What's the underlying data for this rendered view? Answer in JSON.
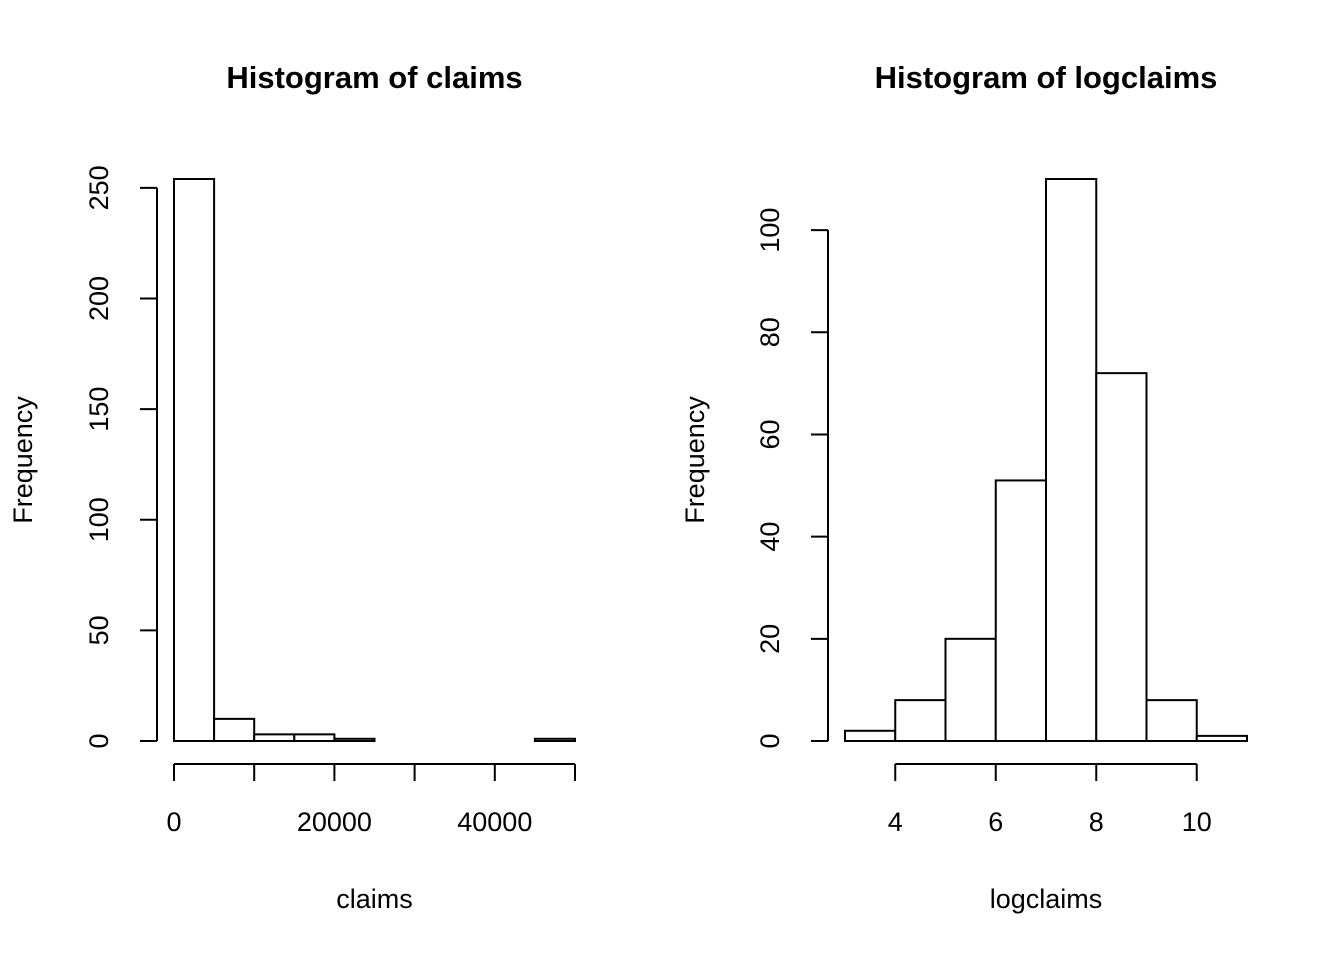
{
  "chart_data": [
    {
      "type": "histogram",
      "title": "Histogram of claims",
      "xlabel": "claims",
      "ylabel": "Frequency",
      "bins": [
        0,
        5000,
        10000,
        15000,
        20000,
        25000,
        30000,
        35000,
        40000,
        45000,
        50000
      ],
      "values": [
        254,
        10,
        3,
        3,
        1,
        0,
        0,
        0,
        0,
        1
      ],
      "xlim": [
        0,
        50000
      ],
      "ylim": [
        0,
        254
      ],
      "xticks": [
        0,
        20000,
        40000
      ],
      "xminor_ticks": [
        10000,
        30000,
        50000
      ],
      "yticks": [
        0,
        50,
        100,
        150,
        200,
        250
      ]
    },
    {
      "type": "histogram",
      "title": "Histogram of logclaims",
      "xlabel": "logclaims",
      "ylabel": "Frequency",
      "bins": [
        3,
        4,
        5,
        6,
        7,
        8,
        9,
        10,
        11
      ],
      "values": [
        2,
        8,
        20,
        51,
        110,
        72,
        8,
        1
      ],
      "xlim": [
        3,
        11
      ],
      "ylim": [
        0,
        110
      ],
      "xticks": [
        4,
        6,
        8,
        10
      ],
      "yticks": [
        0,
        20,
        40,
        60,
        80,
        100
      ]
    }
  ]
}
